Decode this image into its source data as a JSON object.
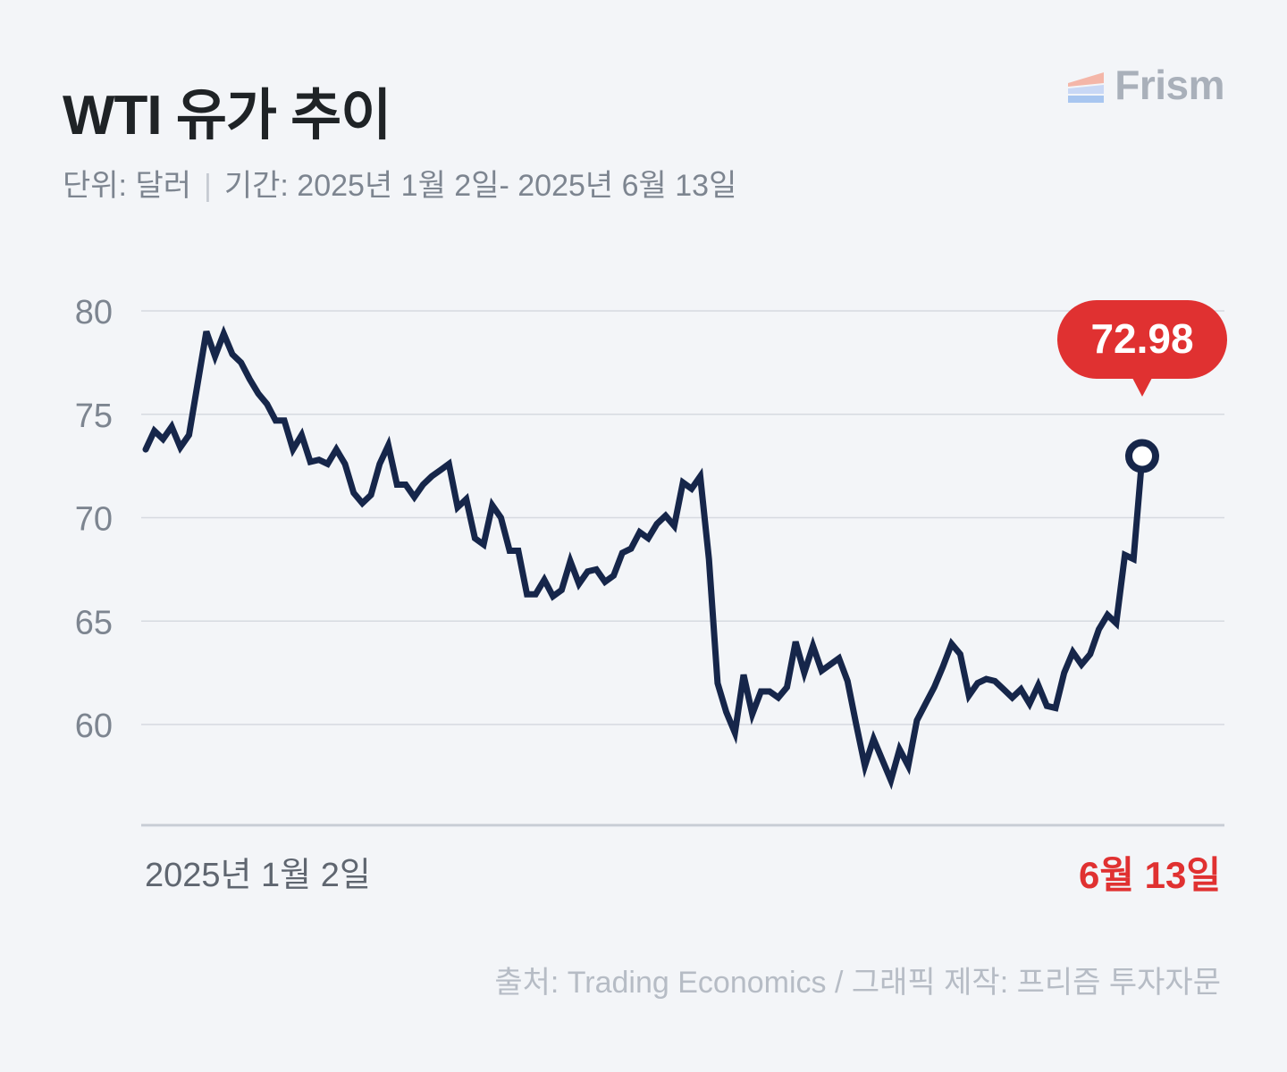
{
  "header": {
    "title": "WTI 유가 추이",
    "unit": "단위: 달러",
    "period": "기간: 2025년 1월 2일- 2025년 6월 13일"
  },
  "logo": {
    "name": "Frism",
    "colors": [
      "#f4b6a8",
      "#c9d8f5",
      "#a8c6f0"
    ]
  },
  "source": "출처: Trading Economics  / 그래픽 제작: 프리즘 투자자문",
  "colors": {
    "line": "#16264a",
    "accent": "#e03131",
    "grid": "#d6dae0",
    "tick": "#7d8590"
  },
  "chart_data": {
    "type": "line",
    "title": "WTI 유가 추이",
    "ylabel": "달러",
    "ylim": [
      55,
      80
    ],
    "yticks": [
      60,
      65,
      70,
      75,
      80
    ],
    "grid": true,
    "x_start_label": "2025년 1월 2일",
    "x_end_label": "6월 13일",
    "last_value_label": "72.98",
    "series": [
      {
        "values": [
          73.3,
          74.2,
          73.8,
          74.4,
          73.4,
          74.0,
          76.5,
          79.0,
          77.8,
          78.9,
          77.9,
          77.5,
          76.7,
          76.0,
          75.5,
          74.7,
          74.7,
          73.3,
          74.0,
          72.7,
          72.8,
          72.6,
          73.3,
          72.6,
          71.2,
          70.7,
          71.1,
          72.6,
          73.5,
          71.6,
          71.6,
          71.0,
          71.6,
          72.0,
          72.3,
          72.6,
          70.5,
          70.9,
          69.0,
          68.7,
          70.6,
          70.0,
          68.4,
          68.4,
          66.3,
          66.3,
          67.0,
          66.2,
          66.5,
          67.9,
          66.8,
          67.4,
          67.5,
          66.9,
          67.2,
          68.3,
          68.5,
          69.3,
          69.0,
          69.7,
          70.1,
          69.6,
          71.7,
          71.4,
          72.0,
          68.0,
          62.0,
          60.6,
          59.6,
          62.4,
          60.5,
          61.6,
          61.6,
          61.3,
          61.8,
          64.0,
          62.5,
          63.8,
          62.6,
          62.9,
          63.2,
          62.1,
          60.0,
          58.0,
          59.3,
          58.3,
          57.3,
          58.8,
          58.0,
          60.2,
          61.0,
          61.8,
          62.8,
          63.9,
          63.4,
          61.4,
          62.0,
          62.2,
          62.1,
          61.7,
          61.3,
          61.7,
          61.0,
          61.9,
          60.9,
          60.8,
          62.5,
          63.5,
          62.9,
          63.4,
          64.6,
          65.3,
          64.9,
          68.2,
          68.0,
          72.98
        ]
      }
    ]
  }
}
